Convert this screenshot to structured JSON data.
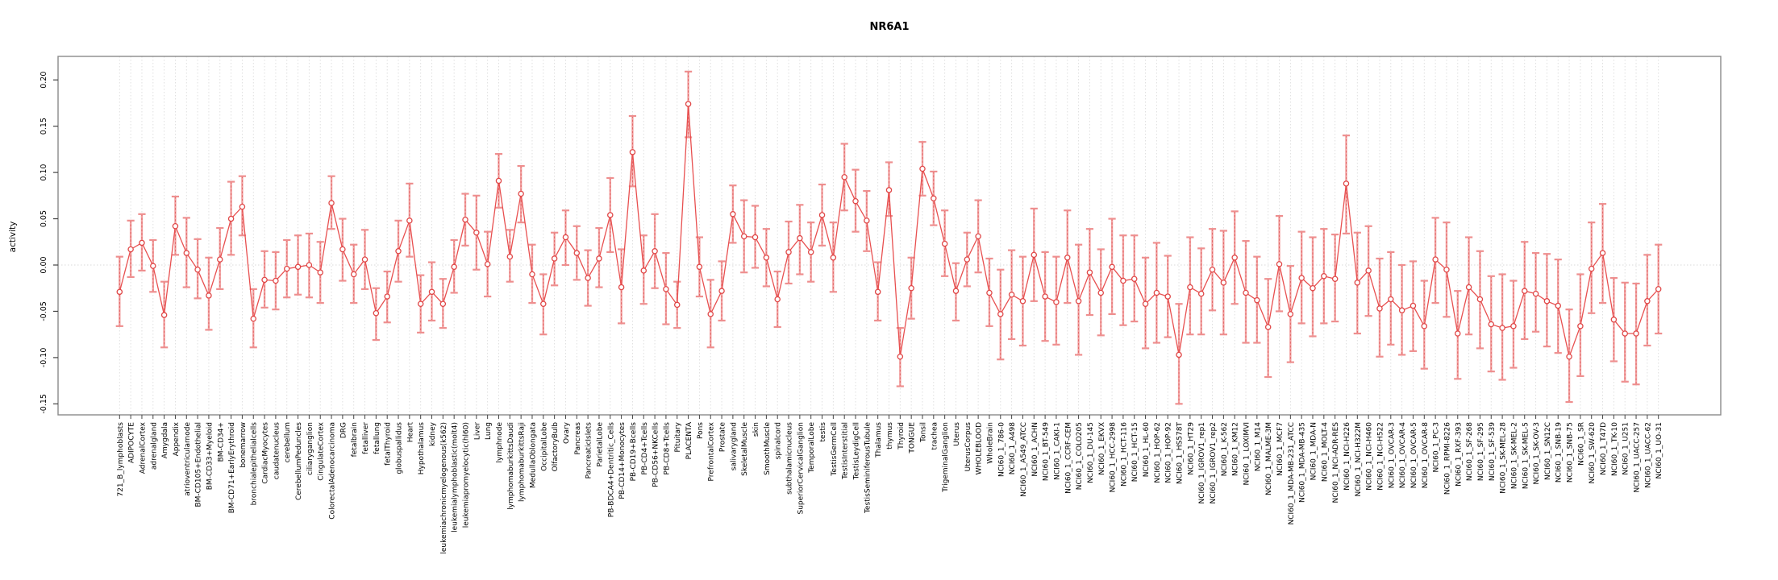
{
  "chart_data": {
    "type": "line",
    "title": "NR6A1",
    "ylabel": "activity",
    "xlabel": "",
    "legend": "none",
    "grid": "dotted vertical gridline per category, dotted horizontal line at 0",
    "marker": "open-circle with error bars",
    "series_color": "#E85050",
    "error_bar_color": "#F2A2A2",
    "ylim": [
      -0.162,
      0.225
    ],
    "y_ticks": [
      "0.20",
      "0.15",
      "0.10",
      "0.05",
      "0.00",
      "-0.05",
      "-0.10",
      "-0.15"
    ],
    "categories": [
      "721_B_lymphoblasts",
      "ADIPOCYTE",
      "AdrenalCortex",
      "adrenalgland",
      "Amygdala",
      "Appendix",
      "atrioventricularnode",
      "BM-CD105+Endothelial",
      "BM-CD33+Myeloid",
      "BM-CD34+",
      "BM-CD71+EarlyErythroid",
      "bonemarrow",
      "bronchialepithelialcells",
      "CardiacMyocytes",
      "caudatenucleus",
      "cerebellum",
      "CerebellumPeduncles",
      "ciliaryganglion",
      "CingulateCortex",
      "ColorectalAdenocarcinoma",
      "DRG",
      "fetalbrain",
      "fetalliver",
      "fetallung",
      "fetalThyroid",
      "globuspallidus",
      "Heart",
      "Hypothalamus",
      "kidney",
      "leukemiachronicmyelogenous(k562)",
      "leukemialymphoblastic(molt4)",
      "leukemiapromyelocytic(hl60)",
      "Liver",
      "Lung",
      "lymphnode",
      "lymphomaburkittsDaudi",
      "lymphomaburkittsRaji",
      "MedullaOblongata",
      "OccipitalLobe",
      "OlfactoryBulb",
      "Ovary",
      "Pancreas",
      "PancreaticIslets",
      "ParietalLobe",
      "PB-BDCA4+Dentritic_Cells",
      "PB-CD14+Monocytes",
      "PB-CD19+Bcells",
      "PB-CD4+Tcells",
      "PB-CD56+NKCells",
      "PB-CD8+Tcells",
      "Pituitary",
      "PLACENTA",
      "Pons",
      "PrefrontalCortex",
      "Prostate",
      "salivarygland",
      "SkeletalMuscle",
      "skin",
      "SmoothMuscle",
      "spinalcord",
      "subthalamicnucleus",
      "SuperiorCervicalGanglion",
      "TemporalLobe",
      "testis",
      "TestisGermCell",
      "TestisInterstitial",
      "TestisLeydigCell",
      "TestisSeminiferousTubule",
      "Thalamus",
      "thymus",
      "Thyroid",
      "TONGUE",
      "Tonsil",
      "trachea",
      "TrigeminalGanglion",
      "Uterus",
      "UterusCorpus",
      "WHOLEBLOOD",
      "WholeBrain",
      "NCI60_1_786-0",
      "NCI60_1_A498",
      "NCI60_1_A549_ATCC",
      "NCI60_1_ACHN",
      "NCI60_1_BT-549",
      "NCI60_1_CAKI-1",
      "NCI60_1_CCRF-CEM",
      "NCI60_1_COLO205",
      "NCI60_1_DU-145",
      "NCI60_1_EKVX",
      "NCI60_1_HCC-2998",
      "NCI60_1_HCT-116",
      "NCI60_1_HCT-15",
      "NCI60_1_HL-60",
      "NCI60_1_HOP-62",
      "NCI60_1_HOP-92",
      "NCI60_1_HS578T",
      "NCI60_1_HT29",
      "NCI60_1_IGROV1_rep1",
      "NCI60_1_IGROV1_rep2",
      "NCI60_1_K-562",
      "NCI60_1_KM12",
      "NCI60_1_LOXIMVI",
      "NCI60_1_M14",
      "NCI60_1_MALME-3M",
      "NCI60_1_MCF7",
      "NCI60_1_MDA-MB-231_ATCC",
      "NCI60_1_MDA-MB-435",
      "NCI60_1_MDA-N",
      "NCI60_1_MOLT-4",
      "NCI60_1_NCI-ADR-RES",
      "NCI60_1_NCI-H226",
      "NCI60_1_NCI-H322M",
      "NCI60_1_NCI-H460",
      "NCI60_1_NCI-H522",
      "NCI60_1_OVCAR-3",
      "NCI60_1_OVCAR-4",
      "NCI60_1_OVCAR-5",
      "NCI60_1_OVCAR-8",
      "NCI60_1_PC-3",
      "NCI60_1_RPMI-8226",
      "NCI60_1_RXF-393",
      "NCI60_1_SF-268",
      "NCI60_1_SF-295",
      "NCI60_1_SF-539",
      "NCI60_1_SK-MEL-28",
      "NCI60_1_SK-MEL-2",
      "NCI60_1_SK-MEL-5",
      "NCI60_1_SK-OV-3",
      "NCI60_1_SN12C",
      "NCI60_1_SNB-19",
      "NCI60_1_SNB-75",
      "NCI60_1_SR",
      "NCI60_1_SW-620",
      "NCI60_1_T47D",
      "NCI60_1_TK-10",
      "NCI60_1_U251",
      "NCI60_1_UACC-257",
      "NCI60_1_UACC-62",
      "NCI60_1_UO-31"
    ],
    "series": [
      {
        "name": "activity",
        "values": [
          -0.029,
          0.017,
          0.024,
          -0.001,
          -0.054,
          0.042,
          0.013,
          -0.005,
          -0.033,
          0.006,
          0.05,
          0.063,
          -0.058,
          -0.016,
          -0.017,
          -0.004,
          -0.002,
          0.0,
          -0.008,
          0.067,
          0.017,
          -0.01,
          0.006,
          -0.052,
          -0.034,
          0.015,
          0.048,
          -0.042,
          -0.029,
          -0.042,
          -0.002,
          0.049,
          0.035,
          0.001,
          0.091,
          0.009,
          0.077,
          -0.01,
          -0.042,
          0.007,
          0.03,
          0.013,
          -0.014,
          0.007,
          0.054,
          -0.024,
          0.122,
          -0.006,
          0.015,
          -0.026,
          -0.043,
          0.174,
          -0.002,
          -0.053,
          -0.028,
          0.055,
          0.031,
          0.03,
          0.008,
          -0.037,
          0.014,
          0.029,
          0.014,
          0.054,
          0.008,
          0.095,
          0.069,
          0.048,
          -0.029,
          0.081,
          -0.099,
          -0.025,
          0.104,
          0.072,
          0.023,
          -0.028,
          0.006,
          0.031,
          -0.03,
          -0.053,
          -0.032,
          -0.039,
          0.011,
          -0.034,
          -0.04,
          0.008,
          -0.039,
          -0.008,
          -0.03,
          -0.002,
          -0.017,
          -0.015,
          -0.042,
          -0.03,
          -0.034,
          -0.097,
          -0.024,
          -0.031,
          -0.005,
          -0.019,
          0.008,
          -0.03,
          -0.038,
          -0.067,
          0.001,
          -0.053,
          -0.014,
          -0.025,
          -0.012,
          -0.015,
          0.088,
          -0.019,
          -0.006,
          -0.047,
          -0.037,
          -0.049,
          -0.044,
          -0.066,
          0.006,
          -0.005,
          -0.074,
          -0.024,
          -0.037,
          -0.064,
          -0.068,
          -0.066,
          -0.028,
          -0.031,
          -0.039,
          -0.044,
          -0.099,
          -0.066,
          -0.004,
          0.013,
          -0.059,
          -0.074,
          -0.074,
          -0.039,
          -0.026
        ]
      }
    ],
    "error_low": [
      -0.066,
      -0.013,
      -0.006,
      -0.029,
      -0.089,
      0.011,
      -0.024,
      -0.036,
      -0.07,
      -0.026,
      0.011,
      0.032,
      -0.089,
      -0.046,
      -0.048,
      -0.035,
      -0.032,
      -0.035,
      -0.041,
      0.039,
      -0.017,
      -0.041,
      -0.026,
      -0.081,
      -0.062,
      -0.018,
      0.009,
      -0.073,
      -0.06,
      -0.068,
      -0.03,
      0.021,
      -0.005,
      -0.034,
      0.062,
      -0.018,
      0.046,
      -0.041,
      -0.075,
      -0.022,
      0.0,
      -0.016,
      -0.044,
      -0.024,
      0.014,
      -0.063,
      0.085,
      -0.042,
      -0.025,
      -0.064,
      -0.068,
      0.138,
      -0.034,
      -0.089,
      -0.06,
      0.024,
      -0.008,
      -0.003,
      -0.023,
      -0.067,
      -0.02,
      -0.01,
      -0.018,
      0.021,
      -0.029,
      0.059,
      0.036,
      0.015,
      -0.06,
      0.053,
      -0.131,
      -0.058,
      0.075,
      0.043,
      -0.012,
      -0.06,
      -0.023,
      -0.008,
      -0.066,
      -0.102,
      -0.08,
      -0.087,
      -0.039,
      -0.082,
      -0.086,
      -0.041,
      -0.097,
      -0.054,
      -0.076,
      -0.053,
      -0.065,
      -0.061,
      -0.09,
      -0.084,
      -0.078,
      -0.15,
      -0.075,
      -0.075,
      -0.049,
      -0.075,
      -0.042,
      -0.084,
      -0.084,
      -0.121,
      -0.05,
      -0.105,
      -0.063,
      -0.077,
      -0.063,
      -0.061,
      0.034,
      -0.074,
      -0.055,
      -0.099,
      -0.086,
      -0.097,
      -0.093,
      -0.112,
      -0.041,
      -0.056,
      -0.123,
      -0.075,
      -0.09,
      -0.115,
      -0.124,
      -0.111,
      -0.08,
      -0.072,
      -0.088,
      -0.095,
      -0.148,
      -0.12,
      -0.052,
      -0.041,
      -0.104,
      -0.126,
      -0.129,
      -0.087,
      -0.074
    ],
    "error_high": [
      0.009,
      0.048,
      0.055,
      0.027,
      -0.018,
      0.074,
      0.051,
      0.028,
      0.008,
      0.04,
      0.09,
      0.096,
      -0.026,
      0.015,
      0.014,
      0.027,
      0.032,
      0.034,
      0.025,
      0.096,
      0.05,
      0.022,
      0.038,
      -0.025,
      -0.007,
      0.048,
      0.088,
      -0.011,
      0.003,
      -0.015,
      0.027,
      0.077,
      0.075,
      0.036,
      0.12,
      0.038,
      0.107,
      0.022,
      -0.01,
      0.035,
      0.059,
      0.042,
      0.016,
      0.04,
      0.094,
      0.017,
      0.161,
      0.032,
      0.055,
      0.013,
      -0.018,
      0.209,
      0.03,
      -0.016,
      0.004,
      0.086,
      0.07,
      0.064,
      0.039,
      -0.007,
      0.047,
      0.065,
      0.046,
      0.087,
      0.046,
      0.131,
      0.103,
      0.08,
      0.003,
      0.111,
      -0.068,
      0.008,
      0.133,
      0.101,
      0.059,
      0.002,
      0.035,
      0.07,
      0.007,
      -0.005,
      0.016,
      0.009,
      0.061,
      0.014,
      0.009,
      0.059,
      0.022,
      0.039,
      0.017,
      0.05,
      0.032,
      0.032,
      0.008,
      0.024,
      0.01,
      -0.042,
      0.03,
      0.018,
      0.039,
      0.037,
      0.058,
      0.026,
      0.009,
      -0.015,
      0.053,
      -0.001,
      0.036,
      0.03,
      0.039,
      0.033,
      0.14,
      0.035,
      0.042,
      0.007,
      0.014,
      0.0,
      0.004,
      -0.017,
      0.051,
      0.046,
      -0.028,
      0.03,
      0.015,
      -0.012,
      -0.01,
      -0.017,
      0.025,
      0.013,
      0.012,
      0.006,
      -0.048,
      -0.01,
      0.046,
      0.066,
      -0.014,
      -0.019,
      -0.02,
      0.011,
      0.022
    ]
  }
}
